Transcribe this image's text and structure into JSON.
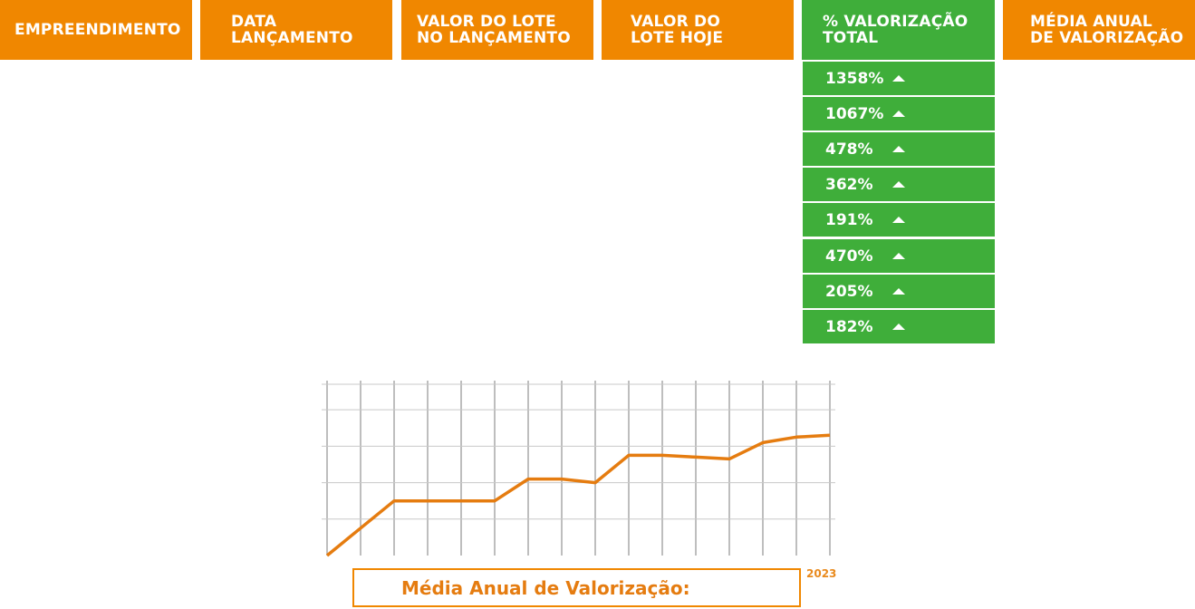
{
  "table": {
    "headers": [
      {
        "id": "empreendimento",
        "label": "EMPREENDIMENTO"
      },
      {
        "id": "data-lancamento",
        "label": "DATA\nLANÇAMENTO"
      },
      {
        "id": "valor-lancamento",
        "label": "VALOR DO LOTE\nNO LANÇAMENTO"
      },
      {
        "id": "valor-hoje",
        "label": "VALOR DO\nLOTE HOJE"
      },
      {
        "id": "valorizacao-total",
        "label": "% VALORIZAÇÃO\nTOTAL"
      },
      {
        "id": "media-anual",
        "label": "MÉDIA ANUAL\nDE VALORIZAÇÃO"
      }
    ],
    "valorizacao_total": [
      "1358%",
      "1067%",
      "478%",
      "362%",
      "191%",
      "470%",
      "205%",
      "182%"
    ],
    "trend_icon": "triangle-up-icon"
  },
  "colors": {
    "orange": "#f08700",
    "green": "#3fae3a",
    "line": "#e57c10",
    "grid": "#a9a9a9"
  },
  "chart_data": {
    "type": "line",
    "title": "",
    "xlabel": "",
    "ylabel": "",
    "x_label_last": "2023",
    "x": [
      0,
      1,
      2,
      3,
      4,
      5,
      6,
      7,
      8,
      9,
      10,
      11,
      12,
      13,
      14,
      15
    ],
    "values": [
      0,
      0.75,
      1.5,
      1.5,
      1.5,
      1.5,
      2.1,
      2.1,
      2.0,
      2.75,
      2.75,
      2.7,
      2.65,
      3.1,
      3.25,
      3.3
    ],
    "ylim": [
      0,
      4.8
    ],
    "y_gridlines": [
      1,
      2,
      3,
      4,
      4.7
    ],
    "grid": true
  },
  "summary_box": {
    "label": "Média Anual de Valorização:"
  }
}
